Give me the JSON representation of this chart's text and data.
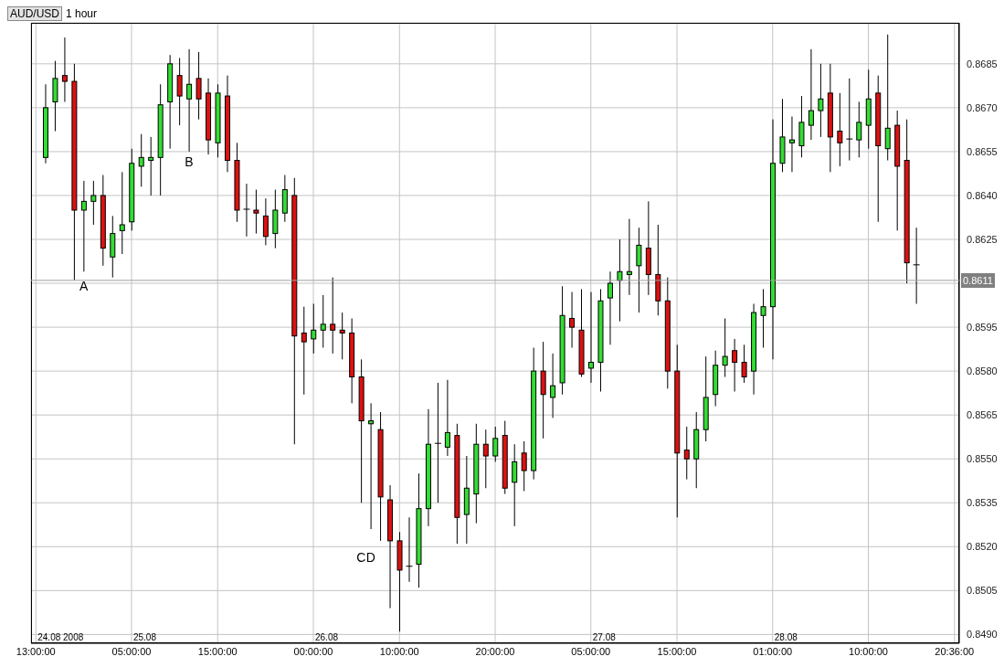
{
  "chart_data": {
    "type": "candlestick",
    "title": "AUD/USD",
    "subtitle": "1 hour",
    "categories": [
      "13:00:00",
      null,
      null,
      null,
      null,
      null,
      null,
      null,
      null,
      null,
      "05:00:00",
      null,
      null,
      null,
      null,
      null,
      null,
      null,
      null,
      "15:00:00",
      null,
      null,
      null,
      null,
      null,
      null,
      null,
      null,
      null,
      "00:00:00",
      null,
      null,
      null,
      null,
      null,
      null,
      null,
      null,
      "10:00:00",
      null,
      null,
      null,
      null,
      null,
      null,
      null,
      null,
      null,
      "20:00:00",
      null,
      null,
      null,
      null,
      null,
      null,
      null,
      null,
      null,
      "05:00:00",
      null,
      null,
      null,
      null,
      null,
      null,
      null,
      null,
      "15:00:00",
      null,
      null,
      null,
      null,
      null,
      null,
      null,
      null,
      null,
      "01:00:00",
      null,
      null,
      null,
      null,
      null,
      null,
      null,
      null,
      null,
      "10:00:00",
      null,
      null,
      null,
      null,
      null,
      null,
      null,
      null,
      "20:36:00"
    ],
    "ohlc": [
      null,
      [
        0.8653,
        0.8678,
        0.8651,
        0.867
      ],
      [
        0.8672,
        0.8686,
        0.8662,
        0.868
      ],
      [
        0.8681,
        0.8694,
        0.8672,
        0.8679
      ],
      [
        0.8679,
        0.8685,
        0.8611,
        0.8635
      ],
      [
        0.8635,
        0.8645,
        0.8614,
        0.8638
      ],
      [
        0.8638,
        0.8645,
        0.863,
        0.864
      ],
      [
        0.864,
        0.8647,
        0.8616,
        0.8622
      ],
      [
        0.8619,
        0.8633,
        0.8612,
        0.8627
      ],
      [
        0.8628,
        0.8648,
        0.862,
        0.863
      ],
      [
        0.8631,
        0.8656,
        0.8628,
        0.8651
      ],
      [
        0.865,
        0.8661,
        0.8643,
        0.8653
      ],
      [
        0.8652,
        0.866,
        0.864,
        0.8653
      ],
      [
        0.8653,
        0.8678,
        0.864,
        0.8671
      ],
      [
        0.8672,
        0.8688,
        0.8656,
        0.8685
      ],
      [
        0.8681,
        0.8687,
        0.8664,
        0.8674
      ],
      [
        0.8673,
        0.869,
        0.8655,
        0.8678
      ],
      [
        0.868,
        0.8689,
        0.8666,
        0.8673
      ],
      [
        0.8675,
        0.868,
        0.8654,
        0.8659
      ],
      [
        0.8658,
        0.8678,
        0.8653,
        0.8675
      ],
      [
        0.8674,
        0.8681,
        0.8648,
        0.8652
      ],
      [
        0.8652,
        0.8658,
        0.8631,
        0.8635
      ],
      [
        0.8635,
        0.8644,
        0.8626,
        0.8635
      ],
      [
        0.8635,
        0.8642,
        0.8627,
        0.8634
      ],
      [
        0.8633,
        0.8639,
        0.8623,
        0.8626
      ],
      [
        0.8627,
        0.8642,
        0.8622,
        0.8635
      ],
      [
        0.8634,
        0.8647,
        0.8631,
        0.8642
      ],
      [
        0.864,
        0.8646,
        0.8555,
        0.8592
      ],
      [
        0.8593,
        0.8602,
        0.8572,
        0.859
      ],
      [
        0.8591,
        0.8603,
        0.8586,
        0.8594
      ],
      [
        0.8594,
        0.8606,
        0.8588,
        0.8596
      ],
      [
        0.8596,
        0.8612,
        0.8586,
        0.8594
      ],
      [
        0.8594,
        0.86,
        0.8584,
        0.8593
      ],
      [
        0.8593,
        0.8598,
        0.8569,
        0.8578
      ],
      [
        0.8578,
        0.8584,
        0.8535,
        0.8563
      ],
      [
        0.8562,
        0.8569,
        0.8526,
        0.8563
      ],
      [
        0.856,
        0.8566,
        0.8522,
        0.8537
      ],
      [
        0.8536,
        0.8541,
        0.8499,
        0.8522
      ],
      [
        0.8522,
        0.8525,
        0.8491,
        0.8512
      ],
      [
        0.8513,
        0.853,
        0.8508,
        0.8513
      ],
      [
        0.8514,
        0.8545,
        0.8506,
        0.8533
      ],
      [
        0.8533,
        0.8567,
        0.8527,
        0.8555
      ],
      [
        0.8555,
        0.8576,
        0.8535,
        0.8555
      ],
      [
        0.8554,
        0.8577,
        0.8551,
        0.8559
      ],
      [
        0.8558,
        0.8562,
        0.8521,
        0.853
      ],
      [
        0.8531,
        0.8551,
        0.8521,
        0.854
      ],
      [
        0.8538,
        0.8562,
        0.8528,
        0.8555
      ],
      [
        0.8555,
        0.856,
        0.854,
        0.8551
      ],
      [
        0.8551,
        0.8561,
        0.8549,
        0.8557
      ],
      [
        0.8558,
        0.8563,
        0.8538,
        0.854
      ],
      [
        0.8542,
        0.8555,
        0.8527,
        0.8549
      ],
      [
        0.8552,
        0.8556,
        0.8539,
        0.8546
      ],
      [
        0.8546,
        0.8588,
        0.8543,
        0.858
      ],
      [
        0.858,
        0.859,
        0.8557,
        0.8572
      ],
      [
        0.8571,
        0.8586,
        0.8564,
        0.8575
      ],
      [
        0.8576,
        0.8609,
        0.8572,
        0.8599
      ],
      [
        0.8598,
        0.8607,
        0.8588,
        0.8595
      ],
      [
        0.8594,
        0.8608,
        0.8578,
        0.8579
      ],
      [
        0.8581,
        0.8607,
        0.8576,
        0.8583
      ],
      [
        0.8583,
        0.8608,
        0.8573,
        0.8604
      ],
      [
        0.8605,
        0.8614,
        0.8589,
        0.861
      ],
      [
        0.8611,
        0.8625,
        0.8597,
        0.8614
      ],
      [
        0.8613,
        0.8632,
        0.8606,
        0.8614
      ],
      [
        0.8616,
        0.8629,
        0.86,
        0.8623
      ],
      [
        0.8622,
        0.8638,
        0.8606,
        0.8613
      ],
      [
        0.8613,
        0.863,
        0.8599,
        0.8604
      ],
      [
        0.8604,
        0.8612,
        0.8574,
        0.858
      ],
      [
        0.858,
        0.8589,
        0.853,
        0.8552
      ],
      [
        0.8553,
        0.8561,
        0.8543,
        0.855
      ],
      [
        0.855,
        0.8566,
        0.854,
        0.856
      ],
      [
        0.856,
        0.8585,
        0.8556,
        0.8571
      ],
      [
        0.8572,
        0.8587,
        0.8568,
        0.8582
      ],
      [
        0.8582,
        0.8598,
        0.8578,
        0.8585
      ],
      [
        0.8587,
        0.8591,
        0.8573,
        0.8583
      ],
      [
        0.8583,
        0.8589,
        0.8576,
        0.8578
      ],
      [
        0.858,
        0.8603,
        0.8572,
        0.86
      ],
      [
        0.8599,
        0.8608,
        0.8588,
        0.8602
      ],
      [
        0.8602,
        0.8666,
        0.8584,
        0.8651
      ],
      [
        0.8651,
        0.8673,
        0.8648,
        0.866
      ],
      [
        0.8658,
        0.8667,
        0.8648,
        0.8659
      ],
      [
        0.8657,
        0.8674,
        0.8653,
        0.8665
      ],
      [
        0.8664,
        0.869,
        0.8659,
        0.8669
      ],
      [
        0.8669,
        0.8685,
        0.866,
        0.8673
      ],
      [
        0.8675,
        0.8685,
        0.8648,
        0.866
      ],
      [
        0.8662,
        0.8675,
        0.865,
        0.8658
      ],
      [
        0.8659,
        0.868,
        0.8652,
        0.8659
      ],
      [
        0.8659,
        0.8672,
        0.8653,
        0.8665
      ],
      [
        0.8664,
        0.8683,
        0.8656,
        0.8673
      ],
      [
        0.8675,
        0.8681,
        0.8631,
        0.8657
      ],
      [
        0.8656,
        0.8695,
        0.8652,
        0.8663
      ],
      [
        0.8664,
        0.8669,
        0.8628,
        0.865
      ],
      [
        0.8652,
        0.8666,
        0.861,
        0.8617
      ],
      [
        0.8616,
        0.8629,
        0.8603,
        0.8616
      ],
      null,
      null,
      null,
      null
    ],
    "colors": [
      null,
      "#33dd33",
      "#33dd33",
      "#dd1111",
      "#dd1111",
      "#33dd33",
      "#33dd33",
      "#dd1111",
      "#33dd33",
      "#33dd33",
      "#33dd33",
      "#33dd33",
      "#33dd33",
      "#33dd33",
      "#33dd33",
      "#dd1111",
      "#33dd33",
      "#dd1111",
      "#dd1111",
      "#33dd33",
      "#dd1111",
      "#dd1111",
      "#000000",
      "#dd1111",
      "#dd1111",
      "#33dd33",
      "#33dd33",
      "#dd1111",
      "#dd1111",
      "#33dd33",
      "#33dd33",
      "#dd1111",
      "#dd1111",
      "#dd1111",
      "#dd1111",
      "#33dd33",
      "#dd1111",
      "#dd1111",
      "#dd1111",
      "#000000",
      "#33dd33",
      "#33dd33",
      "#000000",
      "#33dd33",
      "#dd1111",
      "#33dd33",
      "#33dd33",
      "#dd1111",
      "#33dd33",
      "#dd1111",
      "#33dd33",
      "#dd1111",
      "#33dd33",
      "#dd1111",
      "#33dd33",
      "#33dd33",
      "#dd1111",
      "#dd1111",
      "#33dd33",
      "#33dd33",
      "#33dd33",
      "#33dd33",
      "#33dd33",
      "#33dd33",
      "#dd1111",
      "#dd1111",
      "#dd1111",
      "#dd1111",
      "#dd1111",
      "#33dd33",
      "#33dd33",
      "#33dd33",
      "#33dd33",
      "#dd1111",
      "#dd1111",
      "#33dd33",
      "#33dd33",
      "#33dd33",
      "#33dd33",
      "#33dd33",
      "#33dd33",
      "#33dd33",
      "#33dd33",
      "#dd1111",
      "#dd1111",
      "#000000",
      "#33dd33",
      "#33dd33",
      "#dd1111",
      "#33dd33",
      "#dd1111",
      "#dd1111",
      "#000000",
      null,
      null,
      null,
      null
    ],
    "ylim": [
      0.8487,
      0.8699
    ],
    "yticks": [
      {
        "value": 0.849,
        "label": "0.8490"
      },
      0.8505,
      {
        "value": 0.852,
        "label": "0.8520"
      },
      0.8535,
      {
        "value": 0.855,
        "label": "0.8550"
      },
      0.8565,
      {
        "value": 0.858,
        "label": "0.8580"
      },
      0.8595,
      {
        "value": 0.861,
        "label": null
      },
      0.8625,
      {
        "value": 0.864,
        "label": "0.8640"
      },
      0.8655,
      {
        "value": 0.867,
        "label": "0.8670"
      },
      0.8685
    ],
    "ref_lines": [
      {
        "axis": "y",
        "value": 0.8611,
        "label": "0.8611"
      }
    ],
    "annotations": [
      "A",
      "B",
      "C",
      "D",
      "24.08 2008",
      "25.08",
      "26.08",
      "27.08",
      "28.08"
    ],
    "grid": true
  }
}
